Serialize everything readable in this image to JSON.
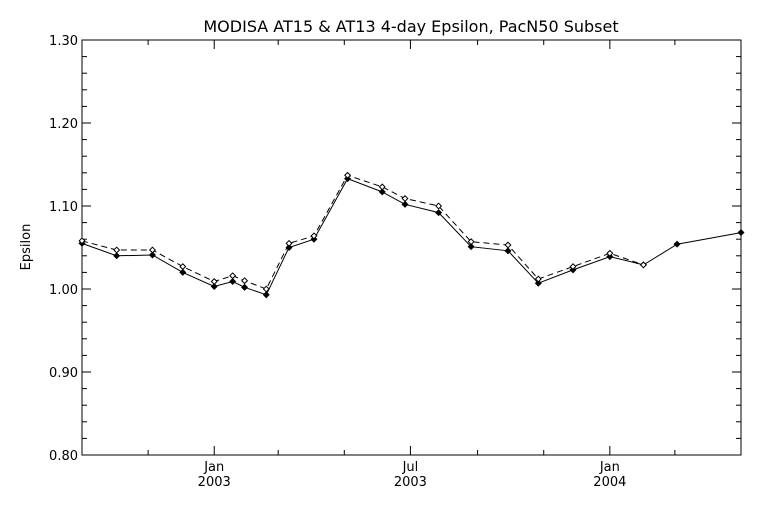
{
  "chart_data": {
    "type": "line",
    "title": "MODISA AT15 & AT13 4-day Epsilon, PacN50 Subset",
    "xlabel": "",
    "ylabel": "Epsilon",
    "ylim": [
      0.8,
      1.3
    ],
    "xlim": [
      "2002-09-01",
      "2004-05-01"
    ],
    "grid": false,
    "y_ticks": [
      "0.80",
      "0.90",
      "1.00",
      "1.10",
      "1.20",
      "1.30"
    ],
    "x_ticks": [
      {
        "date": "2003-01-01",
        "label_top": "Jan",
        "label_bottom": "2003"
      },
      {
        "date": "2003-07-01",
        "label_top": "Jul",
        "label_bottom": "2003"
      },
      {
        "date": "2004-01-01",
        "label_top": "Jan",
        "label_bottom": "2004"
      }
    ],
    "series": [
      {
        "line_style": "solid",
        "color": "#000000",
        "x": [
          "2002-09-01",
          "2002-10-03",
          "2002-11-05",
          "2002-12-03",
          "2003-01-01",
          "2003-01-18",
          "2003-01-29",
          "2003-02-18",
          "2003-03-11",
          "2003-04-03",
          "2003-05-04",
          "2003-06-05",
          "2003-06-26",
          "2003-07-27",
          "2003-08-26",
          "2003-09-29",
          "2003-10-27",
          "2003-11-28",
          "2004-01-01",
          "2004-02-01",
          "2004-03-03",
          "2004-05-01"
        ],
        "y": [
          1.055,
          1.04,
          1.041,
          1.02,
          1.003,
          1.009,
          1.002,
          0.993,
          1.05,
          1.06,
          1.133,
          1.117,
          1.102,
          1.092,
          1.051,
          1.046,
          1.007,
          1.023,
          1.039,
          1.029,
          1.054,
          1.068
        ]
      },
      {
        "line_style": "dashed",
        "color": "#000000",
        "x": [
          "2002-09-01",
          "2002-10-03",
          "2002-11-05",
          "2002-12-03",
          "2003-01-01",
          "2003-01-18",
          "2003-01-29",
          "2003-02-18",
          "2003-03-11",
          "2003-04-03",
          "2003-05-04",
          "2003-06-05",
          "2003-06-26",
          "2003-07-27",
          "2003-08-26",
          "2003-09-29",
          "2003-10-27",
          "2003-11-28",
          "2004-01-01",
          "2004-02-01"
        ],
        "y": [
          1.058,
          1.047,
          1.047,
          1.027,
          1.009,
          1.016,
          1.01,
          1.0,
          1.055,
          1.064,
          1.137,
          1.123,
          1.109,
          1.1,
          1.057,
          1.053,
          1.012,
          1.027,
          1.043,
          1.029
        ]
      }
    ]
  }
}
